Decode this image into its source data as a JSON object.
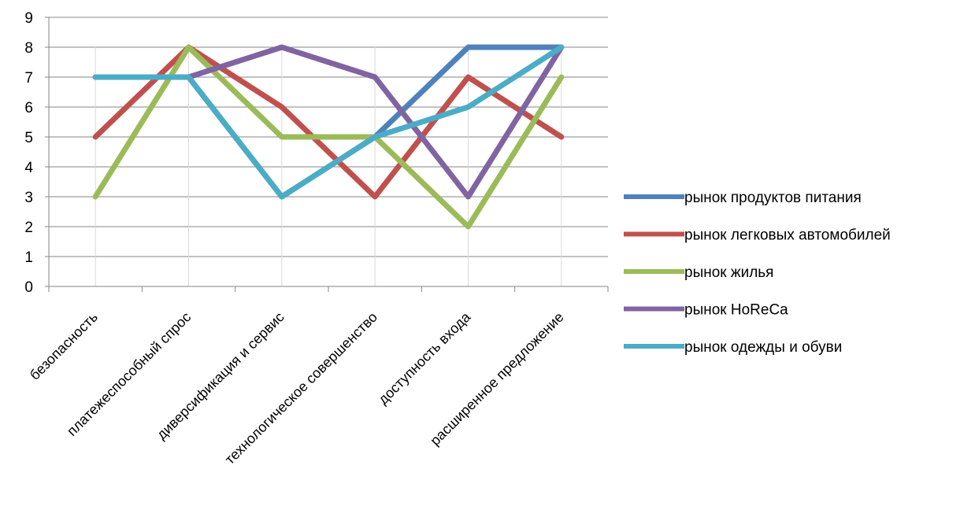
{
  "chart_data": {
    "type": "line",
    "title": "",
    "xlabel": "",
    "ylabel": "",
    "ylim": [
      0,
      9
    ],
    "y_ticks": [
      0,
      1,
      2,
      3,
      4,
      5,
      6,
      7,
      8,
      9
    ],
    "grid": "horizontal",
    "legend_position": "right",
    "categories": [
      "безопасность",
      "платежеспособный спрос",
      "диверсификация и сервис",
      "технологическое совершенство",
      "доступность входа",
      "расширенное предложение"
    ],
    "series": [
      {
        "name": "рынок продуктов питания",
        "color": "#4f81bd",
        "values": [
          7,
          7,
          3,
          5,
          8,
          8
        ]
      },
      {
        "name": "рынок легковых автомобилей",
        "color": "#c0504d",
        "values": [
          5,
          8,
          6,
          3,
          7,
          5
        ]
      },
      {
        "name": "рынок жилья",
        "color": "#9bbb59",
        "values": [
          3,
          8,
          5,
          5,
          2,
          7
        ]
      },
      {
        "name": "рынок HoReCa",
        "color": "#8064a2",
        "values": [
          7,
          7,
          8,
          7,
          3,
          8
        ]
      },
      {
        "name": "рынок одежды и обуви",
        "color": "#4bacc6",
        "values": [
          7,
          7,
          3,
          5,
          6,
          8
        ]
      }
    ]
  }
}
